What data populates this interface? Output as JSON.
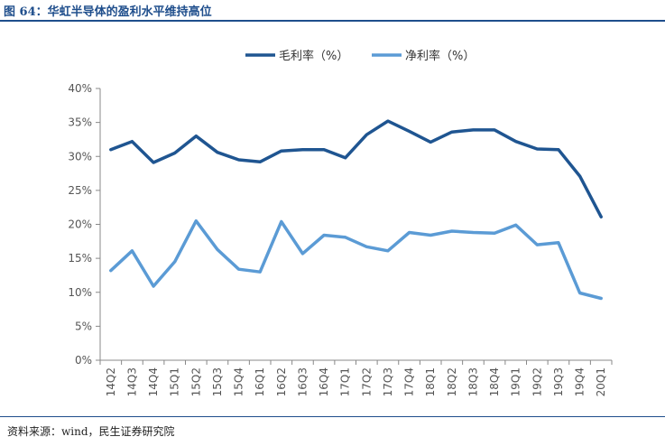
{
  "header": {
    "title": "图 64：华虹半导体的盈利水平维持高位"
  },
  "footer": {
    "source": "资料来源：wind，民生证券研究院"
  },
  "chart_data": {
    "type": "line",
    "categories": [
      "14Q2",
      "14Q3",
      "14Q4",
      "15Q1",
      "15Q2",
      "15Q3",
      "15Q4",
      "16Q1",
      "16Q2",
      "16Q3",
      "16Q4",
      "17Q1",
      "17Q2",
      "17Q3",
      "17Q4",
      "18Q1",
      "18Q2",
      "18Q3",
      "18Q4",
      "19Q1",
      "19Q2",
      "19Q3",
      "19Q4",
      "20Q1"
    ],
    "series": [
      {
        "name": "毛利率（%）",
        "color": "#1f5591",
        "values": [
          31.0,
          32.2,
          29.1,
          30.5,
          33.0,
          30.6,
          29.5,
          29.2,
          30.8,
          31.0,
          31.0,
          29.8,
          33.2,
          35.2,
          33.7,
          32.1,
          33.6,
          33.9,
          33.9,
          32.2,
          31.1,
          31.0,
          27.1,
          21.1
        ]
      },
      {
        "name": "净利率（%）",
        "color": "#5b9bd5",
        "values": [
          13.2,
          16.1,
          10.9,
          14.5,
          20.5,
          16.3,
          13.4,
          13.0,
          20.4,
          15.7,
          18.4,
          18.1,
          16.7,
          16.1,
          18.8,
          18.4,
          19.0,
          18.8,
          18.7,
          19.9,
          17.0,
          17.3,
          9.9,
          9.1
        ]
      }
    ],
    "yticks": [
      "0%",
      "5%",
      "10%",
      "15%",
      "20%",
      "25%",
      "30%",
      "35%",
      "40%"
    ],
    "ylim": [
      0,
      40
    ],
    "legend_position": "top-center",
    "grid": false
  }
}
